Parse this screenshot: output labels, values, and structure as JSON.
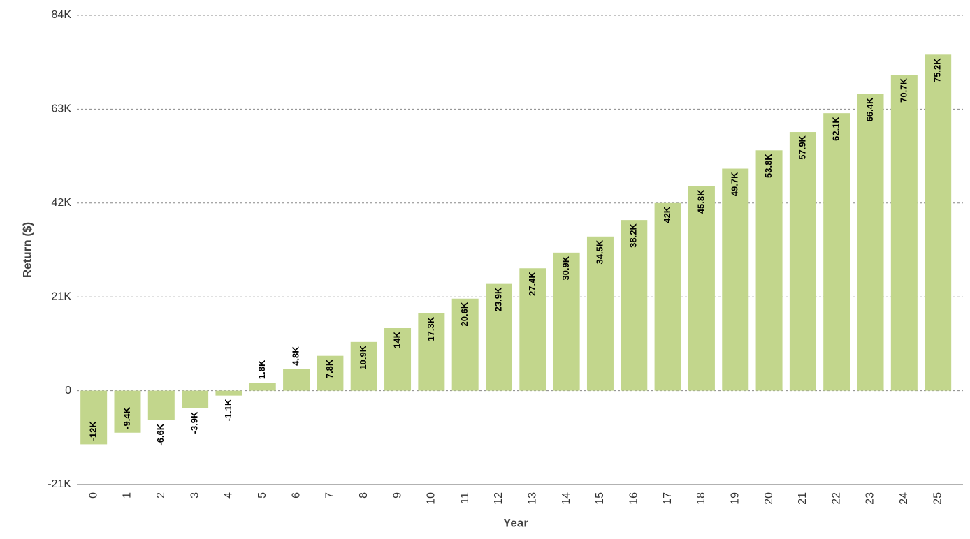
{
  "chart_data": {
    "type": "bar",
    "x_label": "Year",
    "y_label": "Return ($)",
    "categories": [
      "0",
      "1",
      "2",
      "3",
      "4",
      "5",
      "6",
      "7",
      "8",
      "9",
      "10",
      "11",
      "12",
      "13",
      "14",
      "15",
      "16",
      "17",
      "18",
      "19",
      "20",
      "21",
      "22",
      "23",
      "24",
      "25"
    ],
    "values": [
      -12000,
      -9400,
      -6600,
      -3900,
      -1100,
      1800,
      4800,
      7800,
      10900,
      14000,
      17300,
      20600,
      23900,
      27400,
      30900,
      34500,
      38200,
      42000,
      45800,
      49700,
      53800,
      57900,
      62100,
      66400,
      70700,
      75200
    ],
    "value_labels": [
      "-12K",
      "-9.4K",
      "-6.6K",
      "-3.9K",
      "-1.1K",
      "1.8K",
      "4.8K",
      "7.8K",
      "10.9K",
      "14K",
      "17.3K",
      "20.6K",
      "23.9K",
      "27.4K",
      "30.9K",
      "34.5K",
      "38.2K",
      "42K",
      "45.8K",
      "49.7K",
      "53.8K",
      "57.9K",
      "62.1K",
      "66.4K",
      "70.7K",
      "75.2K"
    ],
    "color": "#c2d68c",
    "ylim": [
      -21000,
      84000
    ],
    "yticks": [
      {
        "value": -21000,
        "label": "-21K"
      },
      0,
      {
        "value": 21000,
        "label": "21K"
      },
      {
        "value": 42000,
        "label": "42K"
      },
      {
        "value": 63000,
        "label": "63K"
      },
      {
        "value": 84000,
        "label": "84K"
      }
    ],
    "grid": true
  }
}
